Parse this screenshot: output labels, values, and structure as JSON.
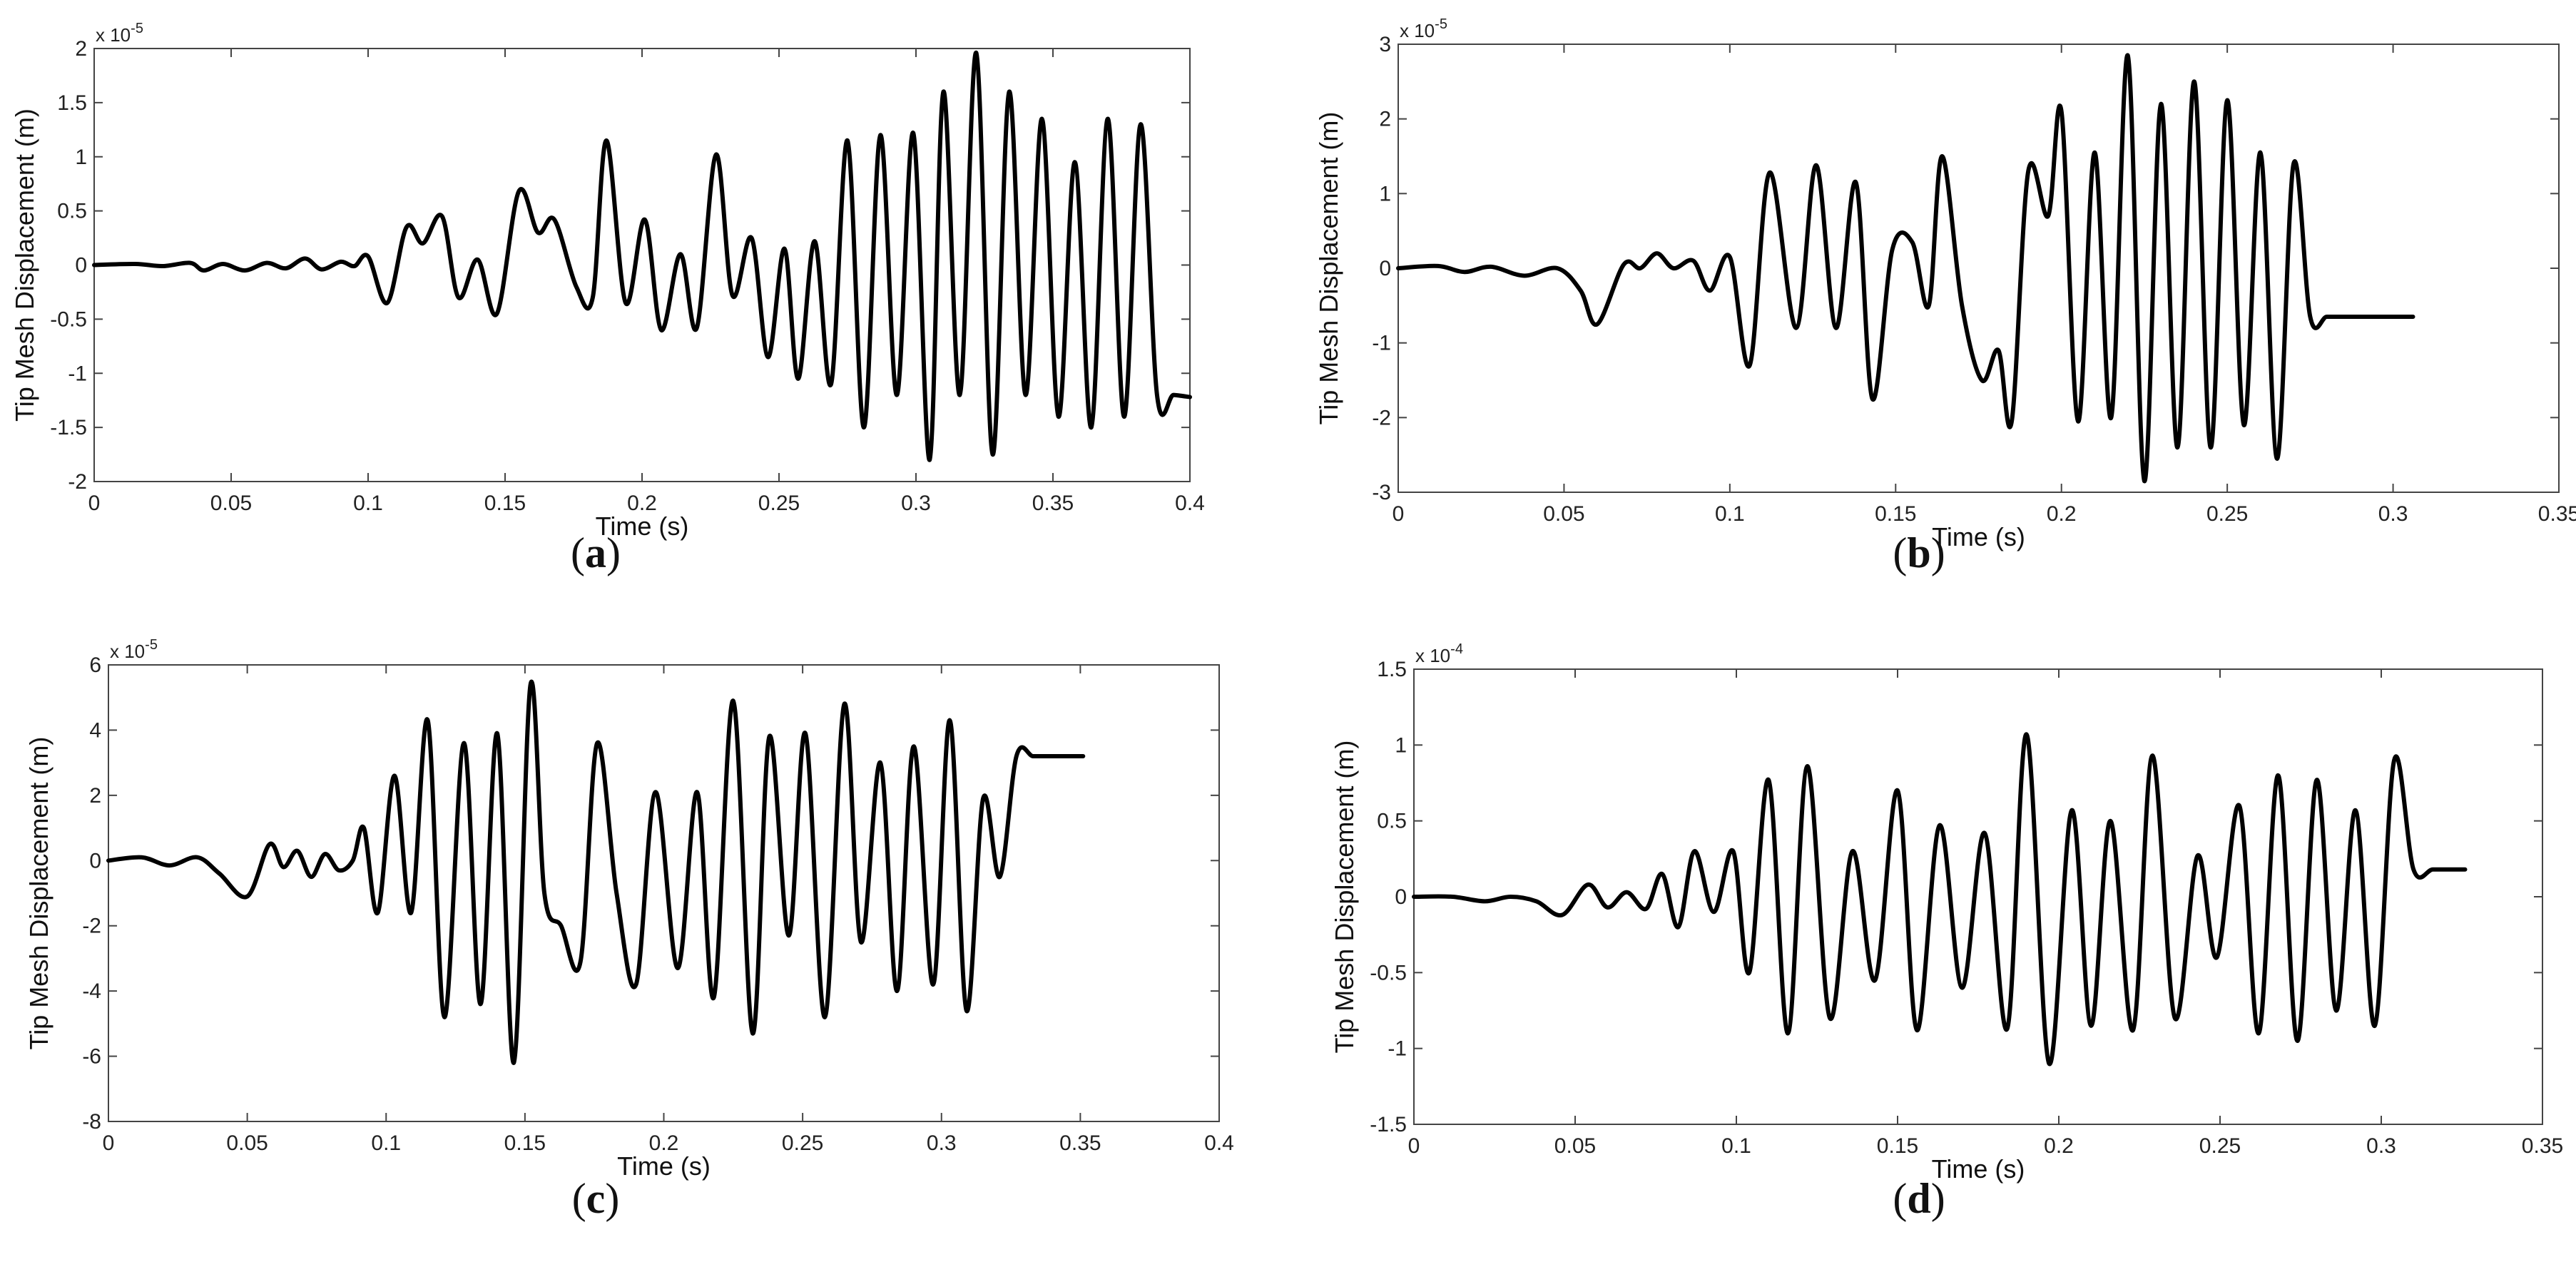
{
  "chart_data": [
    {
      "panel": "a",
      "caption": "(a)",
      "caption_bold": "a",
      "type": "line",
      "xlabel": "Time (s)",
      "ylabel": "Tip Mesh Displacement (m)",
      "exponent_label": "x 10",
      "exponent": "-5",
      "xlim": [
        0,
        0.4
      ],
      "ylim": [
        -2,
        2
      ],
      "xticks": [
        "0",
        "0.05",
        "0.1",
        "0.15",
        "0.2",
        "0.25",
        "0.3",
        "0.35",
        "0.4"
      ],
      "yticks": [
        "-2",
        "-1.5",
        "-1",
        "-0.5",
        "0",
        "0.5",
        "1",
        "1.5",
        "2"
      ],
      "color": "#000000",
      "series": [
        {
          "x": [
            0,
            0.015,
            0.025,
            0.035,
            0.04,
            0.047,
            0.055,
            0.063,
            0.07,
            0.077,
            0.083,
            0.09,
            0.095,
            0.1,
            0.107,
            0.114,
            0.12,
            0.127,
            0.133,
            0.14,
            0.147,
            0.155,
            0.162,
            0.168,
            0.176,
            0.182,
            0.187,
            0.194,
            0.201,
            0.207,
            0.214,
            0.22,
            0.227,
            0.233,
            0.24,
            0.246,
            0.252,
            0.257,
            0.263,
            0.269,
            0.275,
            0.281,
            0.287,
            0.293,
            0.299,
            0.305,
            0.31,
            0.316,
            0.322,
            0.328,
            0.334,
            0.34,
            0.346,
            0.352,
            0.358,
            0.364,
            0.37,
            0.376,
            0.382,
            0.388,
            0.394,
            0.4
          ],
          "y": [
            0,
            0.01,
            -0.01,
            0.02,
            -0.05,
            0.01,
            -0.05,
            0.02,
            -0.03,
            0.06,
            -0.04,
            0.03,
            -0.01,
            0.08,
            -0.35,
            0.35,
            0.2,
            0.45,
            -0.3,
            0.05,
            -0.45,
            0.68,
            0.3,
            0.42,
            -0.2,
            -0.3,
            1.15,
            -0.35,
            0.42,
            -0.6,
            0.1,
            -0.58,
            1.02,
            -0.28,
            0.25,
            -0.85,
            0.15,
            -1.05,
            0.22,
            -1.1,
            1.15,
            -1.5,
            1.2,
            -1.2,
            1.22,
            -1.8,
            1.6,
            -1.2,
            1.96,
            -1.75,
            1.6,
            -1.2,
            1.35,
            -1.4,
            0.95,
            -1.5,
            1.35,
            -1.4,
            1.3,
            -1.2,
            -1.2,
            -1.22
          ]
        }
      ]
    },
    {
      "panel": "b",
      "caption": "(b)",
      "caption_bold": "b",
      "type": "line",
      "xlabel": "Time (s)",
      "ylabel": "Tip Mesh Displacement (m)",
      "exponent_label": "x 10",
      "exponent": "-5",
      "xlim": [
        0,
        0.35
      ],
      "ylim": [
        -3,
        3
      ],
      "xticks": [
        "0",
        "0.05",
        "0.1",
        "0.15",
        "0.2",
        "0.25",
        "0.3",
        "0.35"
      ],
      "yticks": [
        "-3",
        "-2",
        "-1",
        "0",
        "1",
        "2",
        "3"
      ],
      "color": "#000000",
      "series": [
        {
          "x": [
            0,
            0.012,
            0.02,
            0.028,
            0.038,
            0.048,
            0.055,
            0.06,
            0.068,
            0.073,
            0.078,
            0.083,
            0.089,
            0.094,
            0.1,
            0.106,
            0.112,
            0.12,
            0.126,
            0.132,
            0.138,
            0.143,
            0.149,
            0.155,
            0.16,
            0.164,
            0.17,
            0.176,
            0.181,
            0.185,
            0.19,
            0.196,
            0.2,
            0.205,
            0.21,
            0.215,
            0.22,
            0.225,
            0.23,
            0.235,
            0.24,
            0.245,
            0.25,
            0.255,
            0.26,
            0.265,
            0.27,
            0.275,
            0.28,
            0.285,
            0.29,
            0.295,
            0.3,
            0.306
          ],
          "y": [
            0,
            0.03,
            -0.05,
            0.02,
            -0.1,
            0.0,
            -0.3,
            -0.75,
            0.05,
            0.0,
            0.2,
            0.0,
            0.1,
            -0.3,
            0.15,
            -1.3,
            1.28,
            -0.8,
            1.38,
            -0.8,
            1.15,
            -1.75,
            0.25,
            0.35,
            -0.5,
            1.5,
            -0.5,
            -1.5,
            -1.1,
            -2.05,
            1.3,
            0.7,
            2.1,
            -2.05,
            1.55,
            -2.0,
            2.85,
            -2.85,
            2.2,
            -2.4,
            2.5,
            -2.4,
            2.25,
            -2.1,
            1.55,
            -2.55,
            1.4,
            -0.65,
            -0.65,
            -0.65,
            -0.65,
            -0.65,
            -0.65,
            -0.65
          ]
        }
      ]
    },
    {
      "panel": "c",
      "caption": "(c)",
      "caption_bold": "c",
      "type": "line",
      "xlabel": "Time (s)",
      "ylabel": "Tip Mesh Displacement (m)",
      "exponent_label": "x 10",
      "exponent": "-5",
      "xlim": [
        0,
        0.4
      ],
      "ylim": [
        -8,
        6
      ],
      "xticks": [
        "0",
        "0.05",
        "0.1",
        "0.15",
        "0.2",
        "0.25",
        "0.3",
        "0.35",
        "0.4"
      ],
      "yticks": [
        "-8",
        "-6",
        "-4",
        "-2",
        "0",
        "2",
        "4",
        "6"
      ],
      "color": "#000000",
      "series": [
        {
          "x": [
            0,
            0.012,
            0.022,
            0.032,
            0.04,
            0.05,
            0.058,
            0.063,
            0.068,
            0.073,
            0.078,
            0.083,
            0.088,
            0.092,
            0.097,
            0.103,
            0.109,
            0.115,
            0.121,
            0.128,
            0.134,
            0.14,
            0.146,
            0.152,
            0.157,
            0.163,
            0.17,
            0.176,
            0.183,
            0.19,
            0.197,
            0.205,
            0.212,
            0.218,
            0.225,
            0.232,
            0.238,
            0.245,
            0.251,
            0.258,
            0.265,
            0.271,
            0.278,
            0.284,
            0.29,
            0.297,
            0.303,
            0.309,
            0.315,
            0.321,
            0.327,
            0.333,
            0.339,
            0.345,
            0.351
          ],
          "y": [
            0,
            0.1,
            -0.15,
            0.1,
            -0.4,
            -1.1,
            0.5,
            -0.2,
            0.3,
            -0.5,
            0.2,
            -0.3,
            0.0,
            1.0,
            -1.6,
            2.6,
            -1.6,
            4.3,
            -4.8,
            3.6,
            -4.4,
            3.9,
            -6.2,
            5.4,
            -1.0,
            -2.0,
            -3.1,
            3.6,
            -1.0,
            -3.8,
            2.1,
            -3.3,
            2.1,
            -4.2,
            4.9,
            -5.3,
            3.8,
            -2.3,
            3.9,
            -4.8,
            4.8,
            -2.5,
            3.0,
            -4.0,
            3.5,
            -3.8,
            4.3,
            -4.6,
            1.9,
            -0.5,
            3.2,
            3.2,
            3.2,
            3.2,
            3.2
          ]
        }
      ]
    },
    {
      "panel": "d",
      "caption": "(d)",
      "caption_bold": "d",
      "type": "line",
      "xlabel": "Time (s)",
      "ylabel": "Tip Mesh Displacement (m)",
      "exponent_label": "x 10",
      "exponent": "-4",
      "xlim": [
        0,
        0.35
      ],
      "ylim": [
        -1.5,
        1.5
      ],
      "xticks": [
        "0",
        "0.05",
        "0.1",
        "0.15",
        "0.2",
        "0.25",
        "0.3",
        "0.35"
      ],
      "yticks": [
        "-1.5",
        "-1",
        "-0.5",
        "0",
        "0.5",
        "1",
        "1.5"
      ],
      "color": "#000000",
      "series": [
        {
          "x": [
            0,
            0.012,
            0.022,
            0.03,
            0.038,
            0.046,
            0.054,
            0.06,
            0.066,
            0.072,
            0.077,
            0.082,
            0.087,
            0.093,
            0.099,
            0.104,
            0.11,
            0.116,
            0.122,
            0.129,
            0.136,
            0.143,
            0.15,
            0.156,
            0.163,
            0.17,
            0.177,
            0.184,
            0.19,
            0.197,
            0.204,
            0.21,
            0.216,
            0.223,
            0.229,
            0.236,
            0.243,
            0.249,
            0.256,
            0.262,
            0.268,
            0.274,
            0.28,
            0.286,
            0.292,
            0.298,
            0.304,
            0.31,
            0.316,
            0.322,
            0.326
          ],
          "y": [
            0,
            0.0,
            -0.03,
            0.0,
            -0.03,
            -0.12,
            0.08,
            -0.07,
            0.03,
            -0.08,
            0.15,
            -0.2,
            0.3,
            -0.1,
            0.3,
            -0.5,
            0.77,
            -0.9,
            0.86,
            -0.8,
            0.3,
            -0.55,
            0.7,
            -0.88,
            0.47,
            -0.6,
            0.42,
            -0.87,
            1.07,
            -1.1,
            0.57,
            -0.85,
            0.5,
            -0.88,
            0.93,
            -0.8,
            0.27,
            -0.4,
            0.6,
            -0.9,
            0.8,
            -0.95,
            0.77,
            -0.75,
            0.57,
            -0.85,
            0.9,
            0.18,
            0.18,
            0.18,
            0.18
          ]
        }
      ]
    }
  ]
}
